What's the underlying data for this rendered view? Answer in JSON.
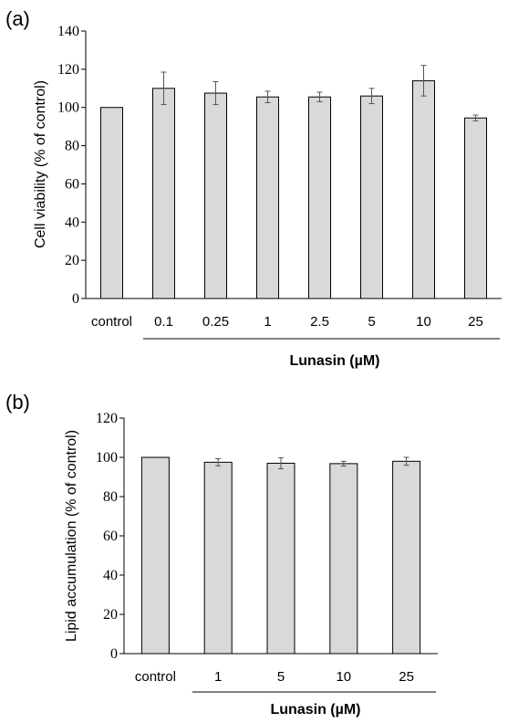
{
  "chart_data": [
    {
      "type": "bar",
      "panel_label": "(a)",
      "categories": [
        "control",
        "0.1",
        "0.25",
        "1",
        "2.5",
        "5",
        "10",
        "25"
      ],
      "values": [
        100,
        110,
        107.5,
        105.5,
        105.5,
        106,
        114,
        94.5
      ],
      "errors": [
        0,
        8.5,
        6,
        3,
        2.5,
        4,
        8,
        1.5
      ],
      "ylabel": "Cell viability (% of control)",
      "xlabel": "Lunasin (µM)",
      "ylim": [
        0,
        140
      ],
      "yticks": [
        0,
        20,
        40,
        60,
        80,
        100,
        120,
        140
      ],
      "bar_color": "#d9d9d9",
      "grid": false
    },
    {
      "type": "bar",
      "panel_label": "(b)",
      "categories": [
        "control",
        "1",
        "5",
        "10",
        "25"
      ],
      "values": [
        100,
        97.5,
        97,
        96.8,
        98
      ],
      "errors": [
        0,
        1.8,
        2.8,
        1.2,
        2
      ],
      "ylabel": "Lipid accumulation (% of control)",
      "xlabel": "Lunasin (µM)",
      "ylim": [
        0,
        120
      ],
      "yticks": [
        0,
        20,
        40,
        60,
        80,
        100,
        120
      ],
      "bar_color": "#d9d9d9",
      "grid": false
    }
  ]
}
